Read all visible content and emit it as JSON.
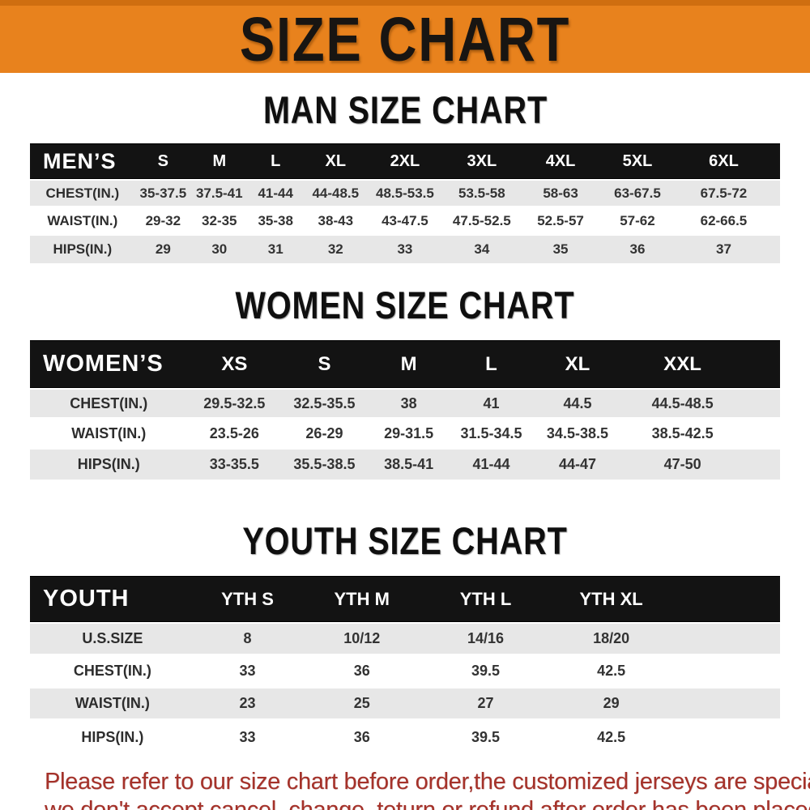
{
  "banner": {
    "title": "SIZE CHART"
  },
  "colors": {
    "banner_bg": "#e8821d",
    "banner_border": "#cf6e10",
    "header_bar_bg": "#131313",
    "header_text": "#ffffff",
    "row_alt_bg": "#e7e7e7",
    "row_bg": "#ffffff",
    "value_text": "#333333",
    "disclaimer_text": "#a5322a"
  },
  "tables": [
    {
      "title": "MAN SIZE CHART",
      "label": "MEN’S",
      "columns": [
        "S",
        "M",
        "L",
        "XL",
        "2XL",
        "3XL",
        "4XL",
        "5XL",
        "6XL"
      ],
      "rows": [
        {
          "label": "CHEST(IN.)",
          "values": [
            "35-37.5",
            "37.5-41",
            "41-44",
            "44-48.5",
            "48.5-53.5",
            "53.5-58",
            "58-63",
            "63-67.5",
            "67.5-72"
          ]
        },
        {
          "label": "WAIST(IN.)",
          "values": [
            "29-32",
            "32-35",
            "35-38",
            "38-43",
            "43-47.5",
            "47.5-52.5",
            "52.5-57",
            "57-62",
            "62-66.5"
          ]
        },
        {
          "label": "HIPS(IN.)",
          "values": [
            "29",
            "30",
            "31",
            "32",
            "33",
            "34",
            "35",
            "36",
            "37"
          ]
        }
      ]
    },
    {
      "title": "WOMEN SIZE CHART",
      "label": "WOMEN’S",
      "columns": [
        "XS",
        "S",
        "M",
        "L",
        "XL",
        "XXL"
      ],
      "rows": [
        {
          "label": "CHEST(IN.)",
          "values": [
            "29.5-32.5",
            "32.5-35.5",
            "38",
            "41",
            "44.5",
            "44.5-48.5"
          ]
        },
        {
          "label": "WAIST(IN.)",
          "values": [
            "23.5-26",
            "26-29",
            "29-31.5",
            "31.5-34.5",
            "34.5-38.5",
            "38.5-42.5"
          ]
        },
        {
          "label": "HIPS(IN.)",
          "values": [
            "33-35.5",
            "35.5-38.5",
            "38.5-41",
            "41-44",
            "44-47",
            "47-50"
          ]
        }
      ]
    },
    {
      "title": "YOUTH SIZE CHART",
      "label": "YOUTH",
      "columns": [
        "YTH S",
        "YTH M",
        "YTH L",
        "YTH XL"
      ],
      "rows": [
        {
          "label": "U.S.SIZE",
          "values": [
            "8",
            "10/12",
            "14/16",
            "18/20"
          ]
        },
        {
          "label": "CHEST(IN.)",
          "values": [
            "33",
            "36",
            "39.5",
            "42.5"
          ]
        },
        {
          "label": "WAIST(IN.)",
          "values": [
            "23",
            "25",
            "27",
            "29"
          ]
        },
        {
          "label": "HIPS(IN.)",
          "values": [
            "33",
            "36",
            "39.5",
            "42.5"
          ]
        }
      ]
    }
  ],
  "disclaimer": {
    "line1": "Please refer to our size chart before order,the customized jerseys are special products,",
    "line2": "we don't accept cancel, change, teturn or refund after order has been placed!"
  }
}
